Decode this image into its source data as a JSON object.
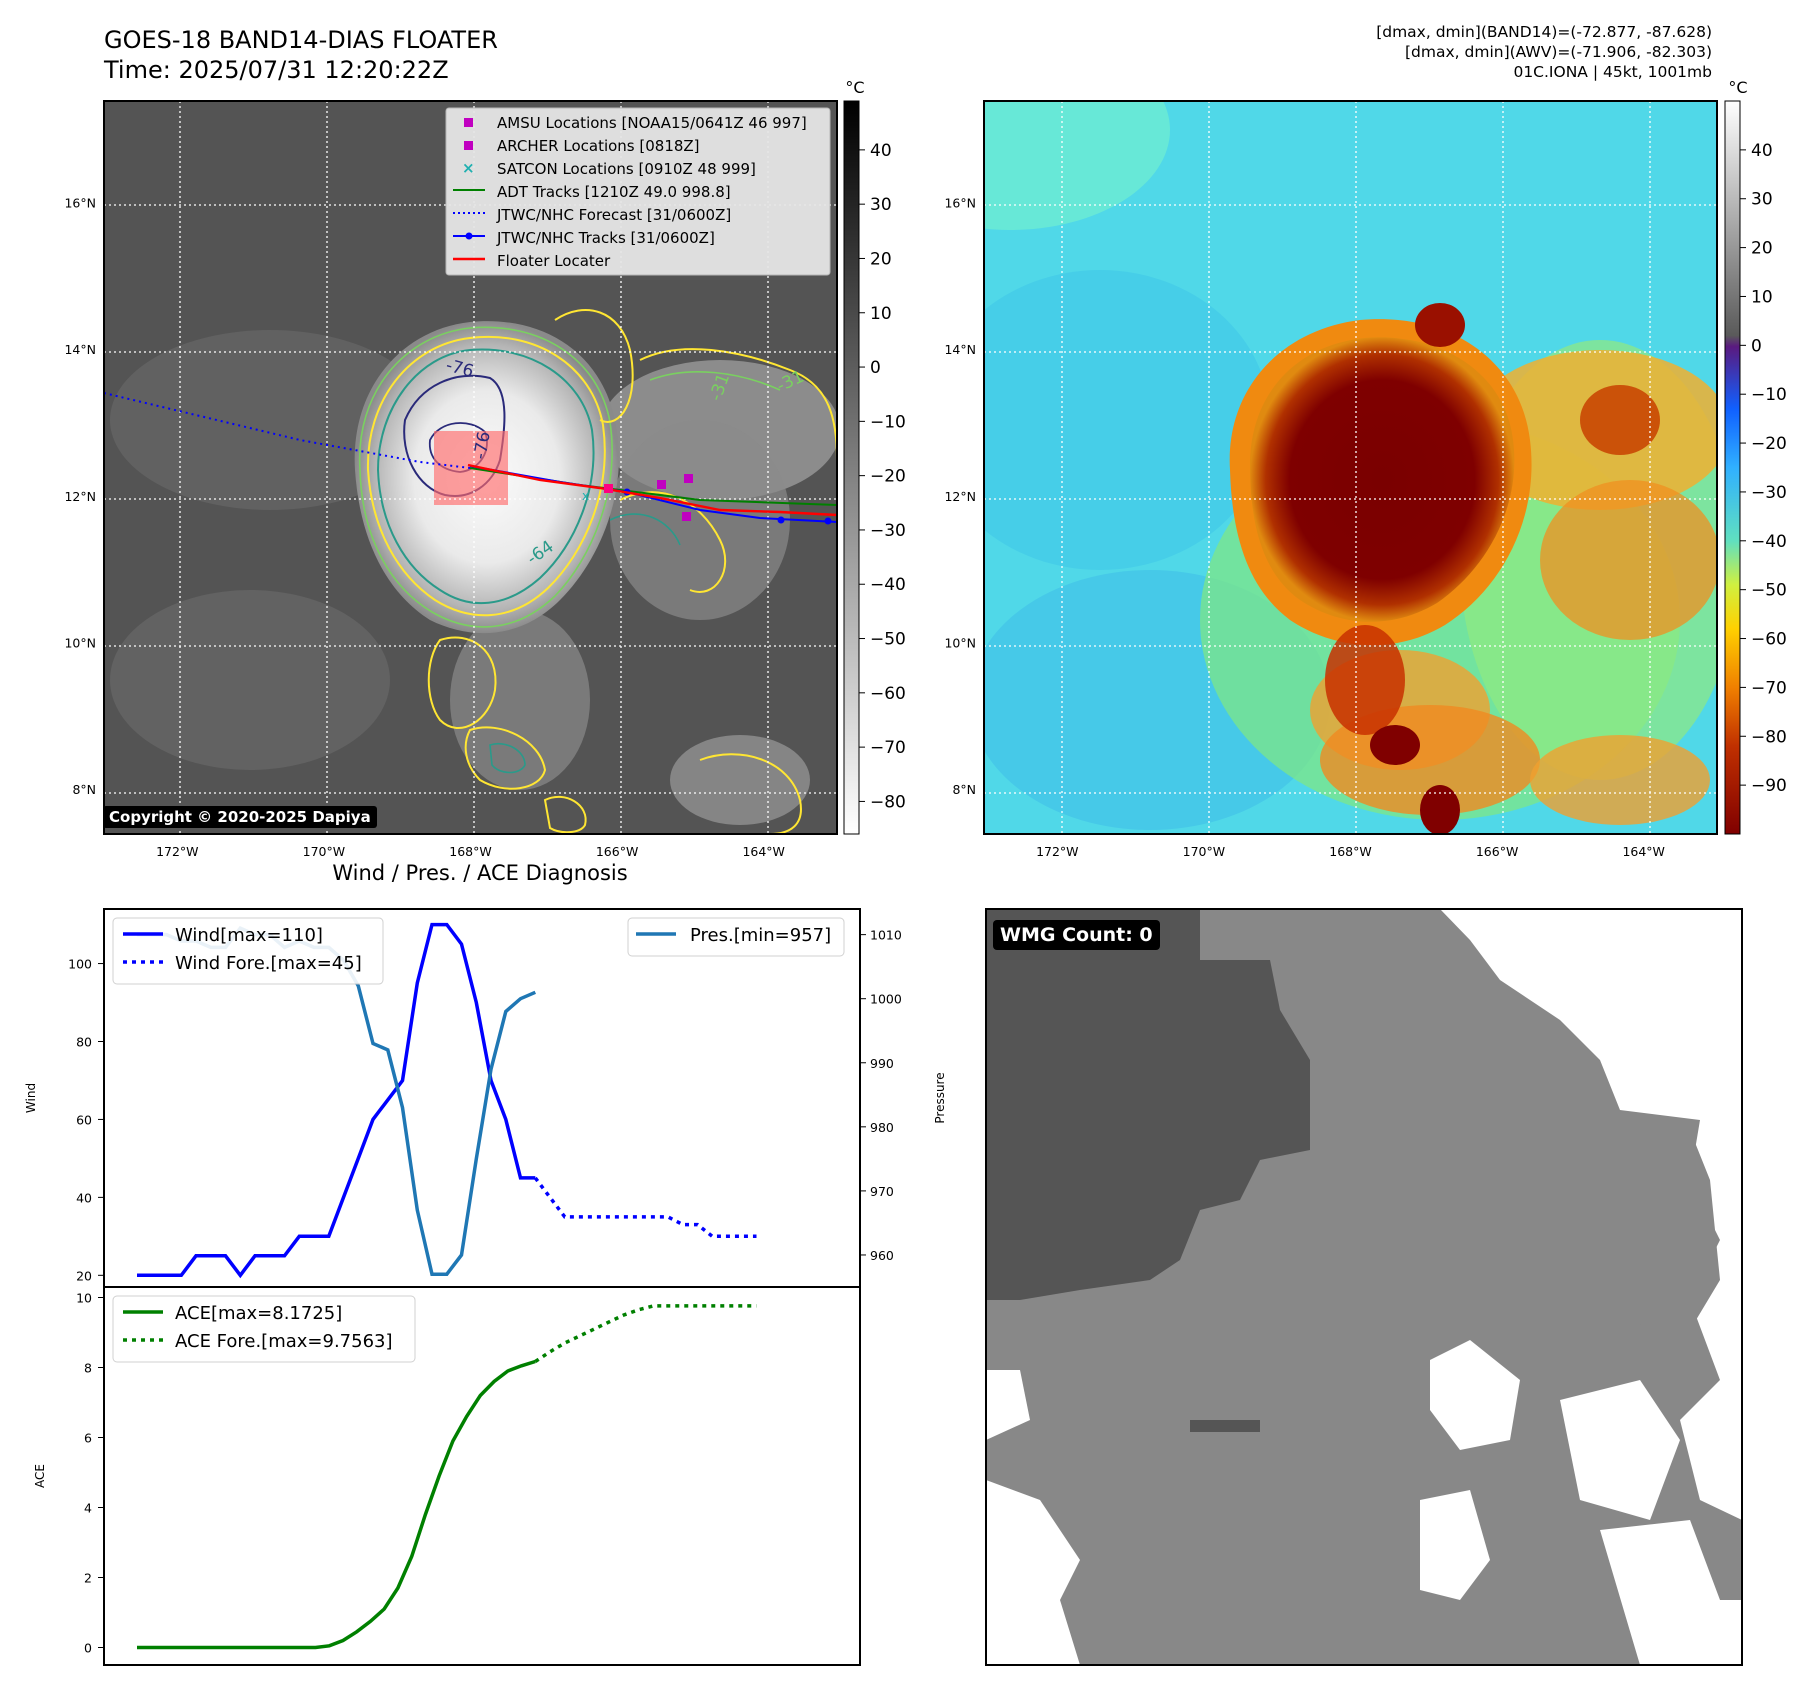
{
  "header": {
    "title_line1": "GOES-18 BAND14-DIAS FLOATER",
    "title_line2": "Time: 2025/07/31 12:20:22Z",
    "info_line1": "[dmax, dmin](BAND14)=(-72.877, -87.628)",
    "info_line2": "[dmax, dmin](AWV)=(-71.906, -82.303)",
    "info_line3": "01C.IONA | 45kt, 1001mb"
  },
  "map": {
    "lat_labels": [
      "16°N",
      "14°N",
      "12°N",
      "10°N",
      "8°N"
    ],
    "lat_values": [
      16,
      14,
      12,
      10,
      8
    ],
    "lon_labels": [
      "172°W",
      "170°W",
      "168°W",
      "166°W",
      "164°W"
    ],
    "lon_values": [
      -172,
      -170,
      -168,
      -166,
      -164
    ],
    "lat_range": [
      7.4,
      17.4
    ],
    "lon_range": [
      -173.0,
      -163.0
    ],
    "copyright": "Copyright © 2020-2025 Dapiya",
    "contour_labels": [
      "-76",
      "-76",
      "-64",
      "-31",
      "-31"
    ]
  },
  "legend": {
    "items": [
      {
        "label": "AMSU Locations [NOAA15/0641Z 46 997]",
        "symbol": "square",
        "color": "#c000c0"
      },
      {
        "label": "ARCHER Locations [0818Z]",
        "symbol": "square",
        "color": "#c000c0"
      },
      {
        "label": "SATCON Locations [0910Z 48 999]",
        "symbol": "x",
        "color": "#20b0b0"
      },
      {
        "label": "ADT Tracks [1210Z 49.0 998.8]",
        "symbol": "line",
        "color": "#008000"
      },
      {
        "label": "JTWC/NHC Forecast [31/0600Z]",
        "symbol": "dotted",
        "color": "#0000ff"
      },
      {
        "label": "JTWC/NHC Tracks [31/0600Z]",
        "symbol": "line-dot",
        "color": "#0000ff"
      },
      {
        "label": "Floater Locater",
        "symbol": "line",
        "color": "#ff0000"
      }
    ]
  },
  "colorbars": {
    "unit": "°C",
    "gray_ticks": [
      "40",
      "30",
      "20",
      "10",
      "0",
      "−10",
      "−20",
      "−30",
      "−40",
      "−50",
      "−60",
      "−70",
      "−80"
    ],
    "gray_range": [
      -86,
      49
    ],
    "color_ticks": [
      "40",
      "30",
      "20",
      "10",
      "0",
      "−10",
      "−20",
      "−30",
      "−40",
      "−50",
      "−60",
      "−70",
      "−80",
      "−90"
    ],
    "color_range": [
      -100,
      50
    ]
  },
  "diagnosis": {
    "title": "Wind / Pres. / ACE Diagnosis",
    "wind_label": "Wind",
    "pressure_label": "Pressure",
    "ace_label": "ACE",
    "wind_ticks": [
      "20",
      "40",
      "60",
      "80",
      "100"
    ],
    "pressure_ticks": [
      "960",
      "970",
      "980",
      "990",
      "1000",
      "1010"
    ],
    "ace_ticks": [
      "0",
      "2",
      "4",
      "6",
      "8",
      "10"
    ],
    "wind_legend": [
      "Wind[max=110]",
      "Wind Fore.[max=45]"
    ],
    "pressure_legend": "Pres.[min=957]",
    "ace_legend": [
      "ACE[max=8.1725]",
      "ACE Fore.[max=9.7563]"
    ]
  },
  "wmg": {
    "label": "WMG Count: 0"
  },
  "chart_data": [
    {
      "type": "line",
      "title": "Wind / Pres. / ACE Diagnosis",
      "ylabel": "Wind",
      "ylim": [
        17,
        114
      ],
      "series": [
        {
          "name": "Wind[max=110]",
          "values": [
            20,
            20,
            20,
            20,
            25,
            25,
            25,
            20,
            25,
            25,
            25,
            30,
            30,
            30,
            40,
            50,
            60,
            65,
            70,
            95,
            110,
            110,
            105,
            90,
            70,
            60,
            45,
            45
          ]
        },
        {
          "name": "Wind Fore.[max=45]",
          "values": [
            45,
            40,
            35,
            35,
            35,
            35,
            35,
            35,
            35,
            35,
            33,
            33,
            30,
            30,
            30,
            30
          ]
        }
      ]
    },
    {
      "type": "line",
      "ylabel": "Pressure",
      "ylim": [
        955,
        1014
      ],
      "series": [
        {
          "name": "Pres.[min=957]",
          "values": [
            1010,
            1010,
            1010,
            1009,
            1009,
            1008,
            1008,
            1011,
            1010,
            1010,
            1008,
            1009,
            1008,
            1008,
            1006,
            1002,
            993,
            992,
            983,
            967,
            957,
            957,
            960,
            975,
            989,
            998,
            1000,
            1001
          ]
        }
      ]
    },
    {
      "type": "line",
      "ylabel": "ACE",
      "ylim": [
        -0.5,
        10.3
      ],
      "series": [
        {
          "name": "ACE[max=8.1725]",
          "values": [
            0,
            0,
            0,
            0,
            0,
            0,
            0,
            0,
            0,
            0,
            0,
            0,
            0,
            0,
            0.05,
            0.2,
            0.45,
            0.75,
            1.1,
            1.7,
            2.6,
            3.8,
            4.9,
            5.9,
            6.6,
            7.2,
            7.6,
            7.9,
            8.05,
            8.17
          ]
        },
        {
          "name": "ACE Fore.[max=9.7563]",
          "values": [
            8.17,
            8.45,
            8.7,
            8.9,
            9.1,
            9.3,
            9.5,
            9.65,
            9.76,
            9.76,
            9.76,
            9.76,
            9.76,
            9.76,
            9.76,
            9.76
          ]
        }
      ]
    }
  ]
}
